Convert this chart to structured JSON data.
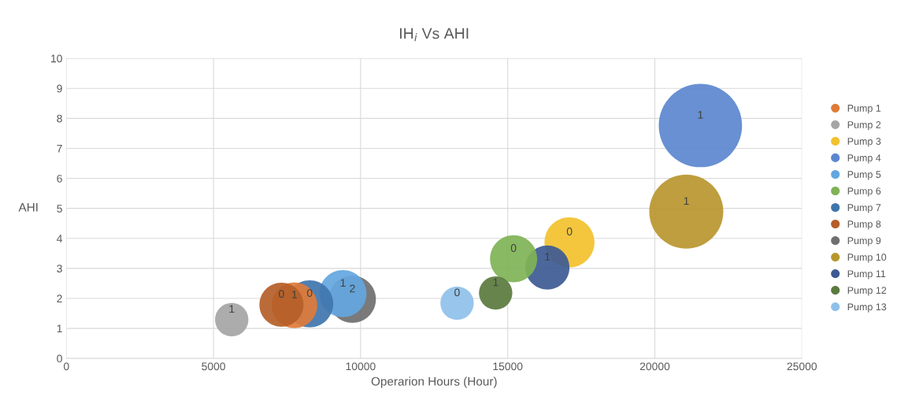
{
  "chart_data": {
    "type": "bubble",
    "title": "IH$_{i}$ Vs AHI",
    "xlabel": "Operarion Hours (Hour)",
    "ylabel": "AHI",
    "xlim": [
      0,
      25000
    ],
    "xticks": [
      0,
      5000,
      10000,
      15000,
      20000,
      25000
    ],
    "ylim": [
      0,
      10
    ],
    "yticks": [
      0,
      1,
      2,
      3,
      4,
      5,
      6,
      7,
      8,
      9,
      10
    ],
    "grid": true,
    "legend": "right",
    "series": [
      {
        "name": "Pump 1",
        "color": "#e07b39",
        "x": [
          7750
        ],
        "values": [
          1.77
        ],
        "sizes": [
          0.3
        ]
      },
      {
        "name": "Pump 2",
        "color": "#a5a5a5",
        "x": [
          5620
        ],
        "values": [
          1.29
        ],
        "sizes": [
          0.16
        ]
      },
      {
        "name": "Pump 3",
        "color": "#f2c12e",
        "x": [
          17100
        ],
        "values": [
          3.87
        ],
        "sizes": [
          0.36
        ]
      },
      {
        "name": "Pump 4",
        "color": "#5b87cf",
        "x": [
          21550
        ],
        "values": [
          7.76
        ],
        "sizes": [
          1
        ]
      },
      {
        "name": "Pump 5",
        "color": "#63a6e0",
        "x": [
          9400
        ],
        "values": [
          2.16
        ],
        "sizes": [
          0.32
        ]
      },
      {
        "name": "Pump 6",
        "color": "#7fb356",
        "x": [
          15200
        ],
        "values": [
          3.32
        ],
        "sizes": [
          0.32
        ]
      },
      {
        "name": "Pump 7",
        "color": "#3f75ad",
        "x": [
          8270
        ],
        "values": [
          1.82
        ],
        "sizes": [
          0.32
        ]
      },
      {
        "name": "Pump 8",
        "color": "#b55e28",
        "x": [
          7310
        ],
        "values": [
          1.79
        ],
        "sizes": [
          0.28
        ]
      },
      {
        "name": "Pump 9",
        "color": "#6f6f6f",
        "x": [
          9720
        ],
        "values": [
          1.97
        ],
        "sizes": [
          0.32
        ]
      },
      {
        "name": "Pump 10",
        "color": "#b8962e",
        "x": [
          21070
        ],
        "values": [
          4.89
        ],
        "sizes": [
          0.79
        ]
      },
      {
        "name": "Pump 11",
        "color": "#3d5a92",
        "x": [
          16350
        ],
        "values": [
          3.03
        ],
        "sizes": [
          0.28
        ]
      },
      {
        "name": "Pump 12",
        "color": "#5a7a3e",
        "x": [
          14590
        ],
        "values": [
          2.18
        ],
        "sizes": [
          0.16
        ]
      },
      {
        "name": "Pump 13",
        "color": "#8fc0ea",
        "x": [
          13280
        ],
        "values": [
          1.84
        ],
        "sizes": [
          0.16
        ]
      }
    ],
    "annotations": [
      {
        "text": "1",
        "x": 7750,
        "y": 1.77
      },
      {
        "text": "1",
        "x": 5620,
        "y": 1.29
      },
      {
        "text": "0",
        "x": 17100,
        "y": 3.87
      },
      {
        "text": "1",
        "x": 21550,
        "y": 7.76
      },
      {
        "text": "1",
        "x": 9400,
        "y": 2.16
      },
      {
        "text": "0",
        "x": 15200,
        "y": 3.32
      },
      {
        "text": "0",
        "x": 8270,
        "y": 1.82
      },
      {
        "text": "0",
        "x": 7310,
        "y": 1.79
      },
      {
        "text": "2",
        "x": 9720,
        "y": 1.97
      },
      {
        "text": "1",
        "x": 21070,
        "y": 4.89
      },
      {
        "text": "1",
        "x": 16350,
        "y": 3.03
      },
      {
        "text": "1",
        "x": 14590,
        "y": 2.18
      },
      {
        "text": "0",
        "x": 13280,
        "y": 1.84
      }
    ]
  }
}
